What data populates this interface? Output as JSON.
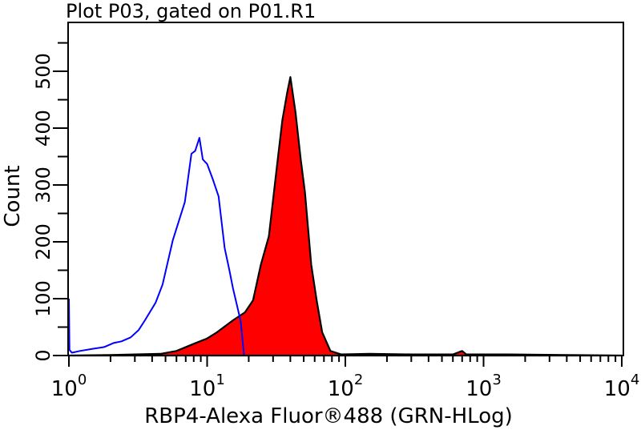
{
  "chart_data": {
    "type": "area",
    "title": "Plot P03, gated on P01.R1",
    "xlabel": "RBP4-Alexa Fluor®488 (GRN-HLog)",
    "ylabel": "Count",
    "xscale": "log",
    "xlim": [
      1,
      10000
    ],
    "ylim": [
      0,
      586
    ],
    "x_ticks": [
      {
        "base": "10",
        "exp": "0",
        "value": 1
      },
      {
        "base": "10",
        "exp": "1",
        "value": 10
      },
      {
        "base": "10",
        "exp": "2",
        "value": 100
      },
      {
        "base": "10",
        "exp": "3",
        "value": 1000
      },
      {
        "base": "10",
        "exp": "4",
        "value": 10000
      }
    ],
    "y_ticks": [
      "0",
      "100",
      "200",
      "300",
      "400",
      "500"
    ],
    "grid": false,
    "series": [
      {
        "style": "outline",
        "color": "#0000ff",
        "x": [
          1.0,
          1.01,
          1.05,
          1.2,
          1.5,
          1.8,
          2.1,
          2.4,
          2.8,
          3.2,
          3.55,
          4.24,
          4.76,
          5.65,
          6.9,
          7.7,
          8.2,
          8.8,
          9.3,
          10,
          11,
          12.1,
          13.4,
          14.5,
          15.4,
          16.9,
          17.5,
          18.5
        ],
        "y": [
          100,
          10,
          5,
          8,
          12,
          15,
          22,
          25,
          32,
          45,
          62,
          93,
          125,
          203,
          270,
          355,
          360,
          383,
          345,
          337,
          310,
          280,
          189,
          150,
          118,
          76,
          60,
          0
        ]
      },
      {
        "style": "filled",
        "color": "#ff0000",
        "outline": "#000000",
        "x": [
          1,
          2,
          3,
          4.6,
          6,
          7.9,
          10,
          11.8,
          15.4,
          18.8,
          21.5,
          24.5,
          28,
          31.9,
          35,
          38,
          40,
          43.6,
          47.6,
          51,
          56.6,
          62,
          68,
          78,
          93,
          150,
          300,
          600,
          700,
          750,
          1500,
          4000,
          10000
        ],
        "y": [
          0,
          1,
          2,
          3,
          8,
          20,
          30,
          41,
          62,
          76,
          97,
          160,
          210,
          330,
          414,
          463,
          490,
          428,
          344,
          287,
          160,
          97,
          41,
          8,
          2,
          3,
          2,
          2,
          8,
          2,
          2,
          1,
          0
        ]
      }
    ]
  }
}
